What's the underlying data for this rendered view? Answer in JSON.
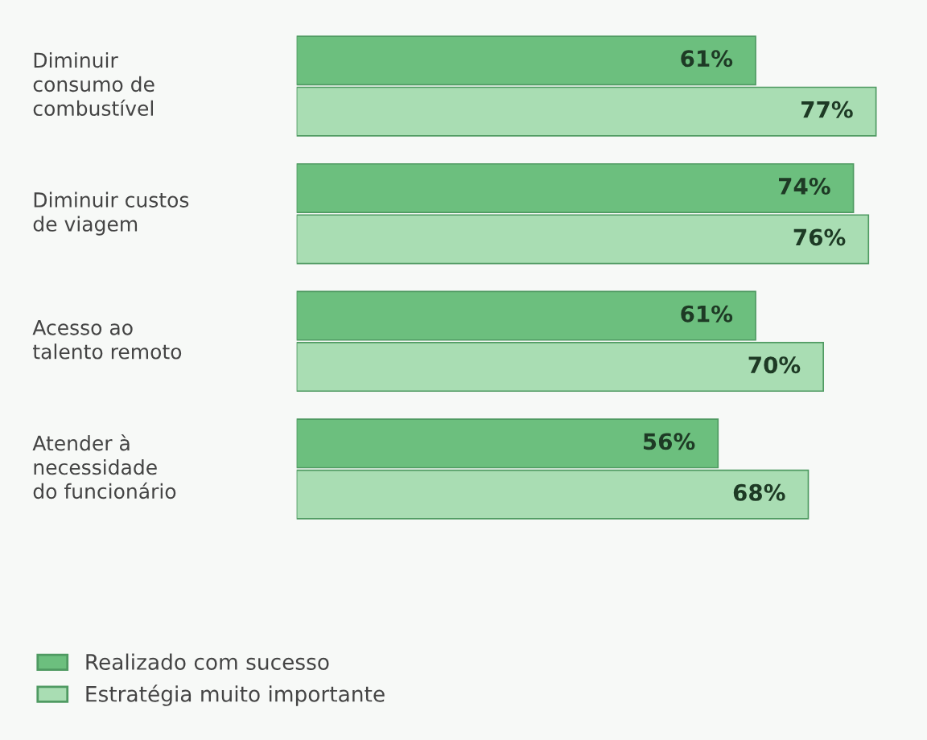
{
  "chart_data": {
    "type": "bar",
    "orientation": "horizontal",
    "categories": [
      "Diminuir\nconsumo de\ncombustível",
      "Diminuir custos\nde viagem",
      "Acesso ao\ntalento remoto",
      "Atender à\nnecessidade\ndo funcionário"
    ],
    "series": [
      {
        "name": "Realizado com sucesso",
        "color": "#6cbf7e",
        "values": [
          61,
          74,
          61,
          56
        ],
        "value_labels": [
          "61%",
          "74%",
          "61%",
          "56%"
        ]
      },
      {
        "name": "Estratégia muito importante",
        "color": "#a9ddb3",
        "values": [
          77,
          76,
          70,
          68
        ],
        "value_labels": [
          "77%",
          "76%",
          "70%",
          "68%"
        ]
      }
    ],
    "legend": "bottom left"
  }
}
